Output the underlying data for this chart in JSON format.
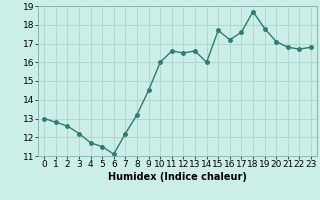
{
  "x": [
    0,
    1,
    2,
    3,
    4,
    5,
    6,
    7,
    8,
    9,
    10,
    11,
    12,
    13,
    14,
    15,
    16,
    17,
    18,
    19,
    20,
    21,
    22,
    23
  ],
  "y": [
    13.0,
    12.8,
    12.6,
    12.2,
    11.7,
    11.5,
    11.1,
    12.2,
    13.2,
    14.5,
    16.0,
    16.6,
    16.5,
    16.6,
    16.0,
    17.7,
    17.2,
    17.6,
    18.7,
    17.8,
    17.1,
    16.8,
    16.7,
    16.8
  ],
  "line_color": "#2e7d6e",
  "marker": "o",
  "marker_size": 2.5,
  "line_width": 1.0,
  "bg_color": "#cceee8",
  "grid_color": "#aad4cc",
  "xlabel": "Humidex (Indice chaleur)",
  "ylim": [
    11,
    19
  ],
  "xlim": [
    -0.5,
    23.5
  ],
  "yticks": [
    11,
    12,
    13,
    14,
    15,
    16,
    17,
    18,
    19
  ],
  "xticks": [
    0,
    1,
    2,
    3,
    4,
    5,
    6,
    7,
    8,
    9,
    10,
    11,
    12,
    13,
    14,
    15,
    16,
    17,
    18,
    19,
    20,
    21,
    22,
    23
  ],
  "xlabel_fontsize": 7,
  "tick_fontsize": 6.5
}
